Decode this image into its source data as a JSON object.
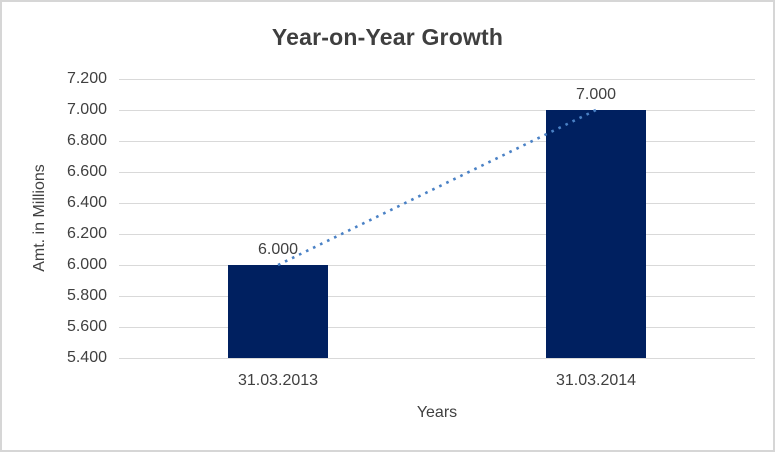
{
  "chart_data": {
    "type": "bar",
    "title": "Year-on-Year Growth",
    "xlabel": "Years",
    "ylabel": "Amt. in Millions",
    "categories": [
      "31.03.2013",
      "31.03.2014"
    ],
    "values": [
      6.0,
      7.0
    ],
    "value_labels": [
      "6.000",
      "7.000"
    ],
    "ylim": [
      5.4,
      7.2
    ],
    "ytick_step": 0.2,
    "ytick_labels": [
      "7.200",
      "7.000",
      "6.800",
      "6.600",
      "6.400",
      "6.200",
      "6.000",
      "5.800",
      "5.600",
      "5.400"
    ],
    "grid": true,
    "legend": false,
    "trendline": {
      "present": true,
      "style": "dotted"
    },
    "colors": {
      "bar": "#002060",
      "trendline": "#4a81c5",
      "gridline": "#d9d9d9",
      "text": "#404040",
      "frame_border": "#d6d6d6",
      "background": "#ffffff"
    }
  }
}
